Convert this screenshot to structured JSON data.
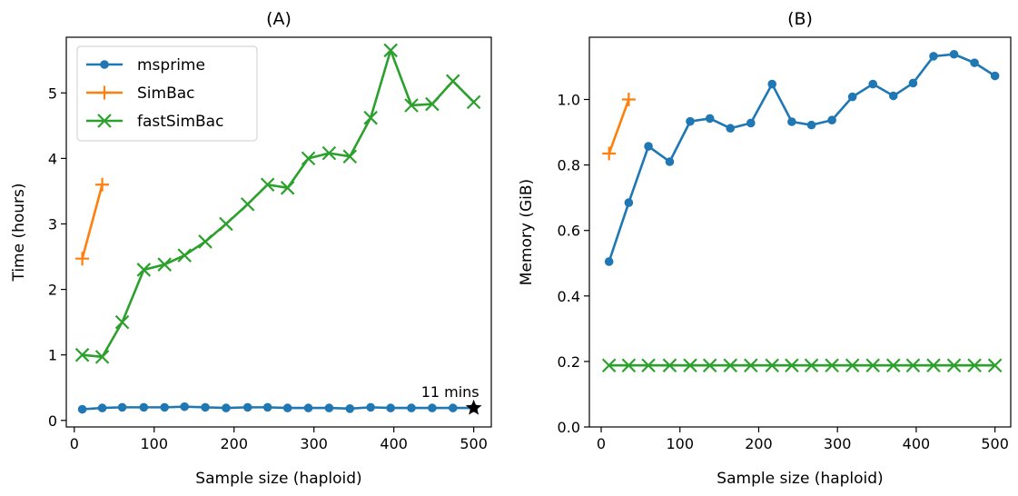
{
  "chart_data": [
    {
      "type": "line",
      "title": "(A)",
      "xlabel": "Sample size (haploid)",
      "ylabel": "Time (hours)",
      "xlim": [
        -10,
        522
      ],
      "ylim": [
        -0.1,
        5.85
      ],
      "xticks": [
        0,
        100,
        200,
        300,
        400,
        500
      ],
      "yticks": [
        0,
        1,
        2,
        3,
        4,
        5
      ],
      "xtick_labels": [
        "0",
        "100",
        "200",
        "300",
        "400",
        "500"
      ],
      "ytick_labels": [
        "0",
        "1",
        "2",
        "3",
        "4",
        "5"
      ],
      "legend_position": "top-left",
      "grid": false,
      "series": [
        {
          "name": "msprime",
          "color": "#1f77b4",
          "marker": "circle",
          "x": [
            10,
            35,
            60,
            87,
            113,
            138,
            164,
            190,
            217,
            242,
            267,
            293,
            319,
            345,
            371,
            396,
            422,
            448,
            474,
            500
          ],
          "y": [
            0.17,
            0.19,
            0.2,
            0.2,
            0.2,
            0.21,
            0.2,
            0.19,
            0.2,
            0.2,
            0.19,
            0.19,
            0.19,
            0.18,
            0.2,
            0.19,
            0.19,
            0.19,
            0.19,
            0.19
          ]
        },
        {
          "name": "SimBac",
          "color": "#ff7f0e",
          "marker": "plus",
          "x": [
            10,
            35
          ],
          "y": [
            2.47,
            3.6
          ]
        },
        {
          "name": "fastSimBac",
          "color": "#2ca02c",
          "marker": "x",
          "x": [
            10,
            35,
            60,
            87,
            113,
            138,
            164,
            190,
            217,
            242,
            267,
            293,
            319,
            345,
            371,
            396,
            422,
            448,
            474,
            500
          ],
          "y": [
            1.0,
            0.97,
            1.5,
            2.3,
            2.38,
            2.52,
            2.73,
            3.0,
            3.3,
            3.6,
            3.55,
            4.0,
            4.08,
            4.03,
            4.62,
            5.65,
            4.81,
            4.83,
            5.18,
            4.86
          ]
        }
      ],
      "annotations": [
        {
          "text": "11 mins",
          "x": 500,
          "y": 0.19,
          "marker": "star",
          "color": "#000000"
        }
      ]
    },
    {
      "type": "line",
      "title": "(B)",
      "xlabel": "Sample size (haploid)",
      "ylabel": "Memory (GiB)",
      "xlim": [
        -15,
        520
      ],
      "ylim": [
        0.0,
        1.19
      ],
      "xticks": [
        0,
        100,
        200,
        300,
        400,
        500
      ],
      "yticks": [
        0.0,
        0.2,
        0.4,
        0.6,
        0.8,
        1.0
      ],
      "xtick_labels": [
        "0",
        "100",
        "200",
        "300",
        "400",
        "500"
      ],
      "ytick_labels": [
        "0.0",
        "0.2",
        "0.4",
        "0.6",
        "0.8",
        "1.0"
      ],
      "grid": false,
      "series": [
        {
          "name": "msprime",
          "color": "#1f77b4",
          "marker": "circle",
          "x": [
            10,
            35,
            60,
            87,
            113,
            138,
            164,
            190,
            217,
            242,
            267,
            293,
            319,
            345,
            371,
            396,
            422,
            448,
            474,
            500
          ],
          "y": [
            0.505,
            0.685,
            0.857,
            0.81,
            0.933,
            0.942,
            0.912,
            0.928,
            1.047,
            0.932,
            0.922,
            0.937,
            1.008,
            1.047,
            1.011,
            1.05,
            1.132,
            1.138,
            1.112,
            1.072
          ]
        },
        {
          "name": "SimBac",
          "color": "#ff7f0e",
          "marker": "plus",
          "x": [
            10,
            35
          ],
          "y": [
            0.835,
            1.0
          ]
        },
        {
          "name": "fastSimBac",
          "color": "#2ca02c",
          "marker": "x",
          "x": [
            10,
            35,
            60,
            87,
            113,
            138,
            164,
            190,
            217,
            242,
            267,
            293,
            319,
            345,
            371,
            396,
            422,
            448,
            474,
            500
          ],
          "y": [
            0.188,
            0.188,
            0.188,
            0.188,
            0.188,
            0.188,
            0.188,
            0.188,
            0.188,
            0.188,
            0.188,
            0.188,
            0.188,
            0.188,
            0.188,
            0.188,
            0.188,
            0.188,
            0.188,
            0.188
          ]
        }
      ]
    }
  ]
}
